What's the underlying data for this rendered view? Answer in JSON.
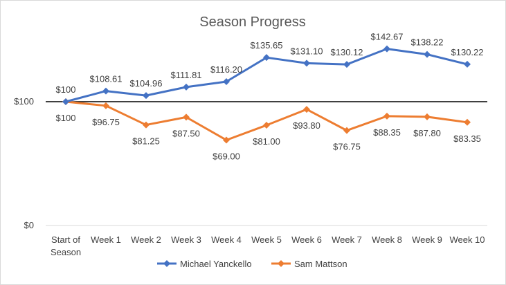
{
  "chart_data": {
    "type": "line",
    "title": "Season Progress",
    "categories": [
      [
        "Start of",
        "Season"
      ],
      [
        "Week 1"
      ],
      [
        "Week 2"
      ],
      [
        "Week 3"
      ],
      [
        "Week 4"
      ],
      [
        "Week 5"
      ],
      [
        "Week 6"
      ],
      [
        "Week 7"
      ],
      [
        "Week 8"
      ],
      [
        "Week 9"
      ],
      [
        "Week 10"
      ]
    ],
    "series": [
      {
        "name": "Michael Yanckello",
        "color": "#4472c4",
        "values": [
          100,
          108.61,
          104.96,
          111.81,
          116.2,
          135.65,
          131.1,
          130.12,
          142.67,
          138.22,
          130.22
        ],
        "labels": [
          "$100",
          "$108.61",
          "$104.96",
          "$111.81",
          "$116.20",
          "$135.65",
          "$131.10",
          "$130.12",
          "$142.67",
          "$138.22",
          "$130.22"
        ]
      },
      {
        "name": "Sam Mattson",
        "color": "#ed7d31",
        "values": [
          100,
          96.75,
          81.25,
          87.5,
          69.0,
          81.0,
          93.8,
          76.75,
          88.35,
          87.8,
          83.35
        ],
        "labels": [
          "$100",
          "$96.75",
          "$81.25",
          "$87.50",
          "$69.00",
          "$81.00",
          "$93.80",
          "$76.75",
          "$88.35",
          "$87.80",
          "$83.35"
        ]
      }
    ],
    "yticks": [
      {
        "value": 0,
        "label": "$0"
      },
      {
        "value": 100,
        "label": "$100"
      }
    ],
    "ylim": [
      0,
      180
    ],
    "reference_line": {
      "value": 100,
      "color": "#000000"
    },
    "gridline_color": "#d9d9d9",
    "grid": false,
    "legend": "bottom"
  }
}
